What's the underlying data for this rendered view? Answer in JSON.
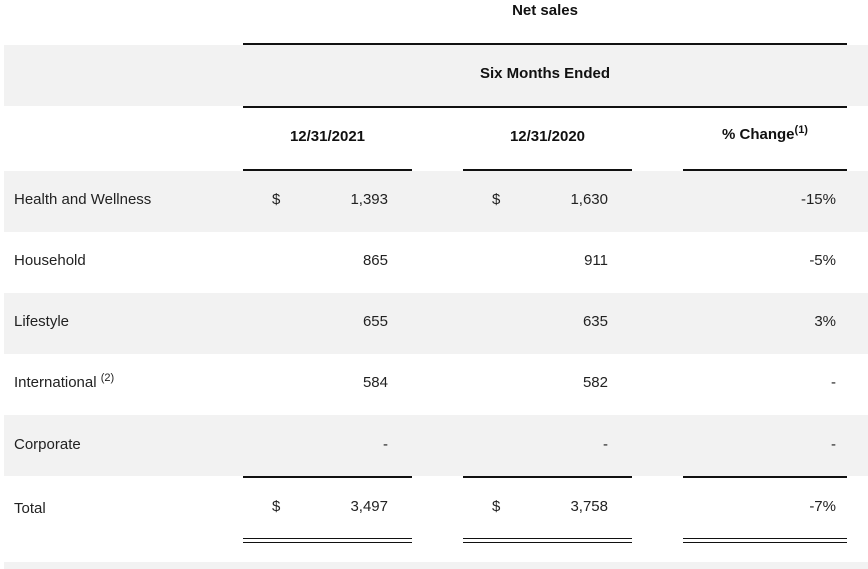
{
  "header": {
    "title": "Net sales",
    "period": "Six Months Ended",
    "columns": [
      "12/31/2021",
      "12/31/2020"
    ],
    "change_label": "% Change",
    "change_footnote": "(1)"
  },
  "currency_symbol": "$",
  "rows": [
    {
      "label": "Health and Wellness",
      "footnote": "",
      "v2021": "1,393",
      "v2020": "1,630",
      "change": "-15%"
    },
    {
      "label": "Household",
      "footnote": "",
      "v2021": "865",
      "v2020": "911",
      "change": "-5%"
    },
    {
      "label": "Lifestyle",
      "footnote": "",
      "v2021": "655",
      "v2020": "635",
      "change": "3%"
    },
    {
      "label": "International",
      "footnote": "(2)",
      "v2021": "584",
      "v2020": "582",
      "change": "-"
    },
    {
      "label": "Corporate",
      "footnote": "",
      "v2021": "-",
      "v2020": "-",
      "change": "-"
    }
  ],
  "total": {
    "label": "Total",
    "v2021": "3,497",
    "v2020": "3,758",
    "change": "-7%"
  },
  "colors": {
    "band": "#f2f2f2",
    "rule": "#111111",
    "text": "#222222"
  }
}
